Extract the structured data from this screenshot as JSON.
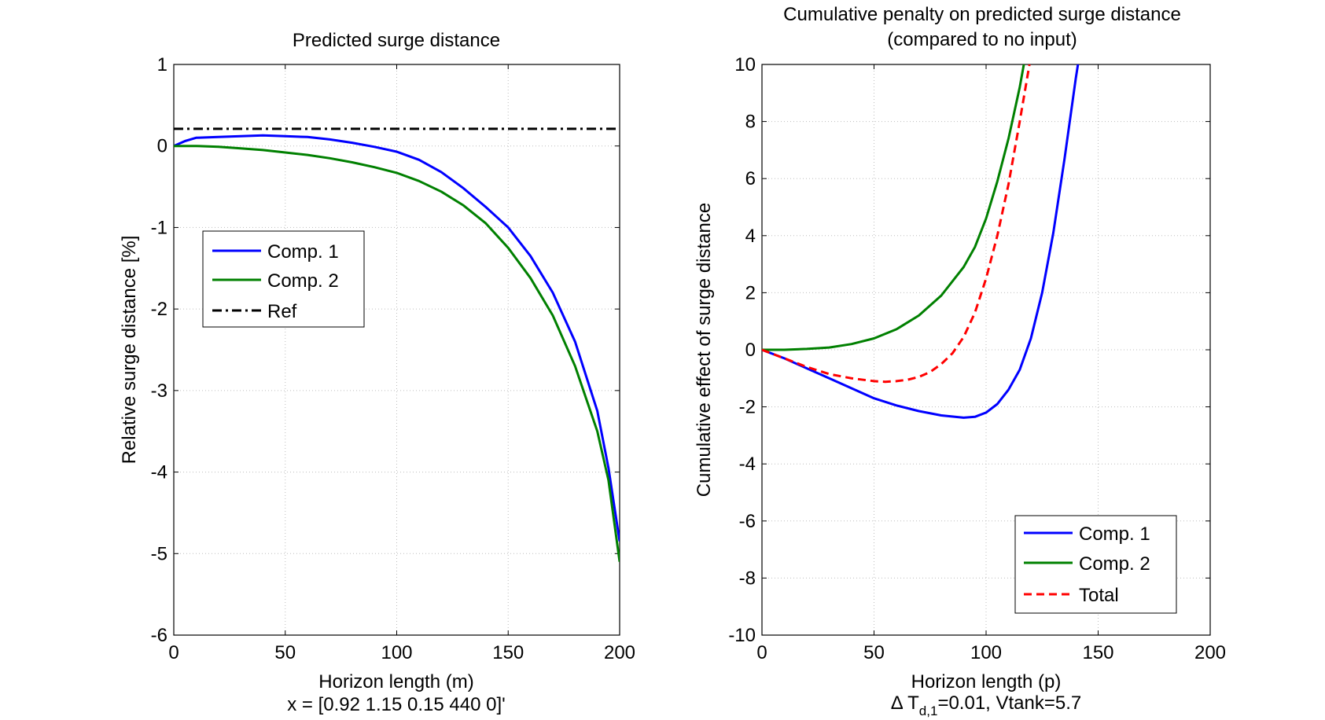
{
  "chart_data": [
    {
      "type": "line",
      "title": "Predicted surge distance",
      "xlabel": "Horizon length (m)",
      "xlabel2": "x = [0.92 1.15 0.15 440 0]'",
      "ylabel": "Relative surge distance [%]",
      "xlim": [
        0,
        200
      ],
      "ylim": [
        -6,
        1
      ],
      "xticks": [
        0,
        50,
        100,
        150,
        200
      ],
      "yticks": [
        1,
        0,
        -1,
        -2,
        -3,
        -4,
        -5,
        -6
      ],
      "grid": true,
      "legend_position": "center-left",
      "series": [
        {
          "name": "Comp. 1",
          "color": "#0000ff",
          "dash": "solid",
          "x": [
            0,
            5,
            10,
            20,
            30,
            40,
            50,
            60,
            70,
            80,
            90,
            100,
            110,
            120,
            130,
            140,
            150,
            160,
            170,
            180,
            190,
            195,
            200
          ],
          "y": [
            0,
            0.06,
            0.1,
            0.11,
            0.12,
            0.13,
            0.12,
            0.11,
            0.08,
            0.04,
            -0.01,
            -0.07,
            -0.17,
            -0.32,
            -0.52,
            -0.75,
            -1.0,
            -1.35,
            -1.8,
            -2.4,
            -3.25,
            -3.95,
            -4.85
          ]
        },
        {
          "name": "Comp. 2",
          "color": "#008000",
          "dash": "solid",
          "x": [
            0,
            10,
            20,
            30,
            40,
            50,
            60,
            70,
            80,
            90,
            100,
            110,
            120,
            130,
            140,
            150,
            160,
            170,
            180,
            190,
            195,
            200
          ],
          "y": [
            0,
            0.0,
            -0.01,
            -0.03,
            -0.05,
            -0.08,
            -0.11,
            -0.15,
            -0.2,
            -0.26,
            -0.33,
            -0.43,
            -0.56,
            -0.73,
            -0.95,
            -1.25,
            -1.62,
            -2.08,
            -2.7,
            -3.5,
            -4.1,
            -5.1
          ]
        },
        {
          "name": "Ref",
          "color": "#000000",
          "dash": "dashdot",
          "x": [
            0,
            200
          ],
          "y": [
            0.21,
            0.21
          ]
        }
      ]
    },
    {
      "type": "line",
      "title": "Cumulative penalty on predicted surge distance",
      "subtitle": "(compared to no input)",
      "xlabel": "Horizon length (p)",
      "xlabel2_symbol": "Δ T",
      "xlabel2_sub": "d,1",
      "xlabel2_rest": "=0.01, Vtank=5.7",
      "ylabel": "Cumulative effect of surge distance",
      "xlim": [
        0,
        200
      ],
      "ylim": [
        -10,
        10
      ],
      "xticks": [
        0,
        50,
        100,
        150,
        200
      ],
      "yticks": [
        10,
        8,
        6,
        4,
        2,
        0,
        -2,
        -4,
        -6,
        -8,
        -10
      ],
      "grid": true,
      "legend_position": "bottom-right",
      "series": [
        {
          "name": "Comp. 1",
          "color": "#0000ff",
          "dash": "solid",
          "x": [
            0,
            10,
            20,
            30,
            40,
            50,
            60,
            70,
            80,
            90,
            95,
            100,
            105,
            110,
            115,
            120,
            125,
            130,
            135,
            140,
            143
          ],
          "y": [
            0,
            -0.3,
            -0.65,
            -1.0,
            -1.35,
            -1.7,
            -1.95,
            -2.15,
            -2.3,
            -2.38,
            -2.35,
            -2.2,
            -1.9,
            -1.4,
            -0.7,
            0.4,
            2.0,
            4.1,
            6.7,
            9.5,
            11
          ]
        },
        {
          "name": "Comp. 2",
          "color": "#008000",
          "dash": "solid",
          "x": [
            0,
            10,
            20,
            30,
            40,
            50,
            60,
            70,
            80,
            90,
            95,
            100,
            105,
            110,
            115,
            118
          ],
          "y": [
            0,
            0.0,
            0.03,
            0.08,
            0.2,
            0.4,
            0.72,
            1.2,
            1.9,
            2.9,
            3.6,
            4.6,
            5.9,
            7.4,
            9.2,
            10.5
          ]
        },
        {
          "name": "Total",
          "color": "#ff0000",
          "dash": "dashed",
          "x": [
            0,
            10,
            20,
            30,
            40,
            50,
            55,
            60,
            65,
            70,
            75,
            80,
            85,
            90,
            95,
            100,
            105,
            110,
            115,
            120,
            122
          ],
          "y": [
            0,
            -0.3,
            -0.6,
            -0.85,
            -1.0,
            -1.1,
            -1.12,
            -1.1,
            -1.05,
            -0.95,
            -0.78,
            -0.5,
            -0.12,
            0.45,
            1.3,
            2.5,
            4.0,
            5.8,
            8.0,
            10.3,
            11
          ]
        }
      ]
    }
  ]
}
